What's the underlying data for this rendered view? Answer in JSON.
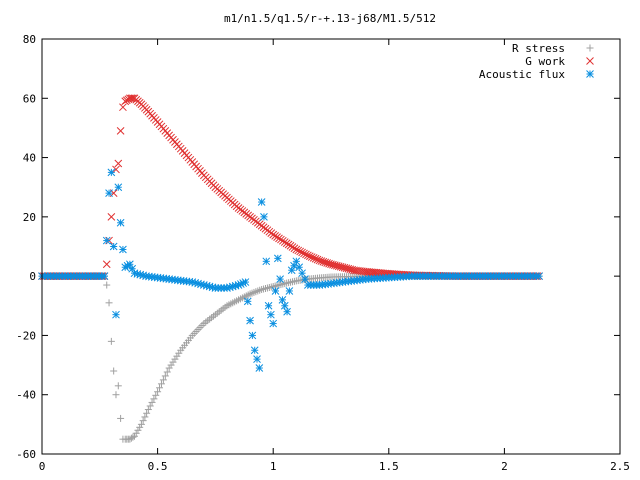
{
  "chart_data": {
    "type": "scatter",
    "title": "m1/n1.5/q1.5/r-+.13-j68/M1.5/512",
    "xlabel": "",
    "ylabel": "",
    "xlim": [
      0,
      2.5
    ],
    "ylim": [
      -60,
      80
    ],
    "xticks": [
      0,
      0.5,
      1,
      1.5,
      2,
      2.5
    ],
    "yticks": [
      -60,
      -40,
      -20,
      0,
      20,
      40,
      60,
      80
    ],
    "xtick_labels": [
      "0",
      "0.5",
      "1",
      "1.5",
      "2",
      "2.5"
    ],
    "ytick_labels": [
      "-60",
      "-40",
      "-20",
      "0",
      "20",
      "40",
      "60",
      "80"
    ],
    "grid": false,
    "legend_position": "top-right",
    "series": [
      {
        "name": "R stress",
        "marker": "plus",
        "color": "#a0a0a0",
        "x": [
          0.0,
          0.1,
          0.2,
          0.27,
          0.28,
          0.29,
          0.3,
          0.31,
          0.32,
          0.33,
          0.34,
          0.35,
          0.36,
          0.38,
          0.4,
          0.43,
          0.46,
          0.5,
          0.55,
          0.6,
          0.65,
          0.7,
          0.75,
          0.8,
          0.85,
          0.9,
          0.95,
          1.0,
          1.05,
          1.1,
          1.15,
          1.2,
          1.25,
          1.3,
          1.35,
          1.4,
          1.5,
          1.6,
          1.8,
          2.0,
          2.15
        ],
        "y": [
          0,
          0,
          0,
          0,
          -3,
          -9,
          -22,
          -32,
          -40,
          -37,
          -48,
          -55,
          -55,
          -55,
          -54,
          -50,
          -45,
          -39,
          -31,
          -25,
          -20,
          -16,
          -13,
          -10,
          -8,
          -6,
          -4.5,
          -3.5,
          -2.5,
          -1.6,
          -1,
          -0.6,
          -0.3,
          -0.2,
          -0.1,
          0,
          0,
          0,
          0,
          0,
          0
        ]
      },
      {
        "name": "G work",
        "marker": "cross",
        "color": "#e03030",
        "x": [
          0.0,
          0.1,
          0.2,
          0.27,
          0.28,
          0.29,
          0.3,
          0.31,
          0.32,
          0.33,
          0.34,
          0.35,
          0.36,
          0.38,
          0.4,
          0.43,
          0.46,
          0.5,
          0.55,
          0.6,
          0.65,
          0.7,
          0.75,
          0.8,
          0.85,
          0.9,
          0.95,
          1.0,
          1.05,
          1.1,
          1.15,
          1.2,
          1.25,
          1.3,
          1.35,
          1.4,
          1.5,
          1.6,
          1.8,
          2.0,
          2.15
        ],
        "y": [
          0,
          0,
          0,
          0,
          4,
          12,
          20,
          28,
          36,
          38,
          49,
          57,
          59,
          60,
          60,
          58,
          55.5,
          52,
          47.5,
          43,
          38.5,
          34,
          30,
          26.5,
          23,
          20,
          17,
          14,
          11.5,
          9,
          7,
          5.3,
          4,
          3,
          2,
          1.5,
          0.8,
          0.3,
          0,
          0,
          0
        ]
      },
      {
        "name": "Acoustic flux",
        "marker": "star",
        "color": "#0a8fe0",
        "x": [
          0.0,
          0.1,
          0.2,
          0.27,
          0.28,
          0.29,
          0.3,
          0.31,
          0.32,
          0.33,
          0.34,
          0.35,
          0.36,
          0.38,
          0.4,
          0.45,
          0.5,
          0.55,
          0.6,
          0.65,
          0.7,
          0.75,
          0.8,
          0.85,
          0.88,
          0.9,
          0.92,
          0.94,
          0.95,
          0.96,
          0.98,
          1.0,
          1.02,
          1.04,
          1.06,
          1.08,
          1.1,
          1.15,
          1.2,
          1.3,
          1.4,
          1.5,
          1.6,
          1.8,
          2.0,
          2.15
        ],
        "y": [
          0,
          0,
          0,
          0,
          12,
          28,
          35,
          10,
          -13,
          30,
          18,
          9,
          3,
          4,
          1,
          0,
          -0.5,
          -1,
          -1.5,
          -2,
          -3,
          -4,
          -4,
          -3,
          -2,
          -15,
          -25,
          -31,
          25,
          20,
          -10,
          -16,
          6,
          -8,
          -12,
          2,
          5,
          -3,
          -3,
          -2,
          -1,
          -0.5,
          0,
          0,
          0,
          0
        ]
      }
    ]
  }
}
